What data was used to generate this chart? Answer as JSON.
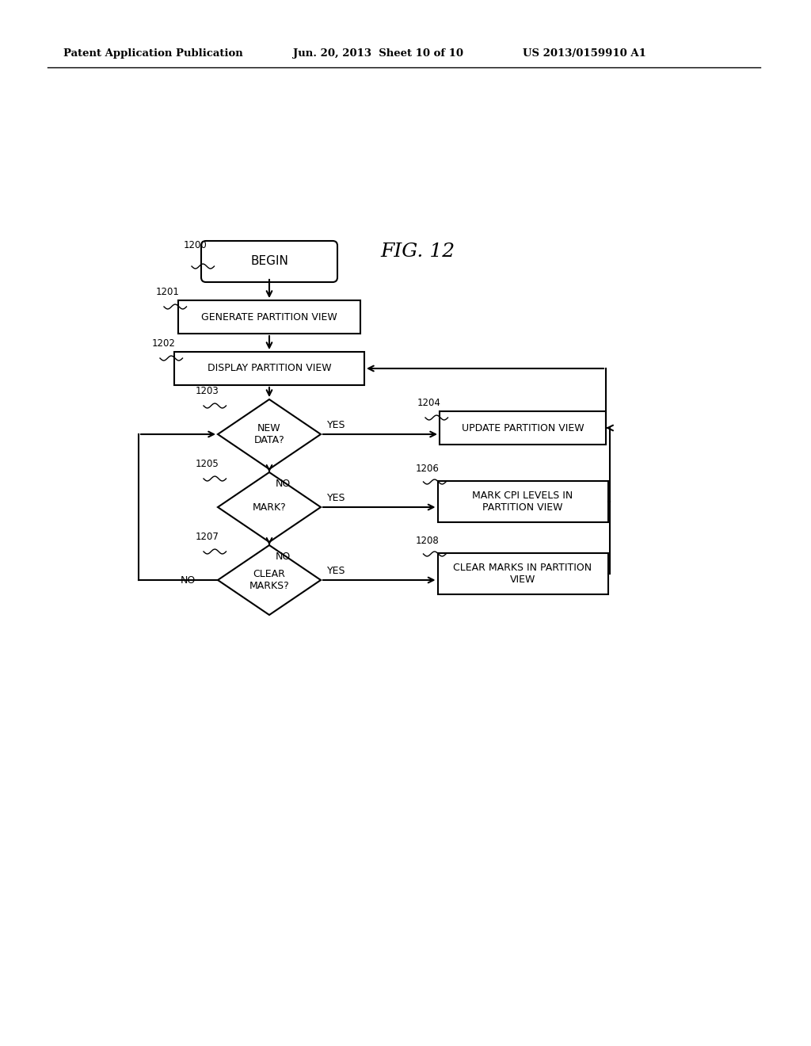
{
  "header_left": "Patent Application Publication",
  "header_mid": "Jun. 20, 2013  Sheet 10 of 10",
  "header_right": "US 2013/0159910 A1",
  "fig_label": "FIG. 12",
  "background_color": "#ffffff",
  "begin_label": "BEGIN",
  "n1200": "1200",
  "n1201": "1201",
  "n1202": "1202",
  "n1203": "1203",
  "n1204": "1204",
  "n1205": "1205",
  "n1206": "1206",
  "n1207": "1207",
  "n1208": "1208",
  "l1201": "GENERATE PARTITION VIEW",
  "l1202": "DISPLAY PARTITION VIEW",
  "l1203": "NEW\nDATA?",
  "l1204": "UPDATE PARTITION VIEW",
  "l1205": "MARK?",
  "l1206": "MARK CPI LEVELS IN\nPARTITION VIEW",
  "l1207": "CLEAR\nMARKS?",
  "l1208": "CLEAR MARKS IN PARTITION\nVIEW",
  "yes": "YES",
  "no": "NO"
}
